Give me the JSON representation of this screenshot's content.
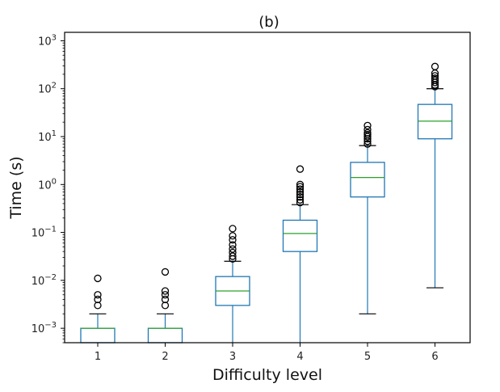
{
  "chart_data": {
    "type": "box",
    "title": "(b)",
    "xlabel": "Difficulty level",
    "ylabel": "Time (s)",
    "yscale": "log",
    "ylim": [
      0.0005,
      1500
    ],
    "y_ticks": [
      {
        "value": 0.001,
        "base": "10",
        "exp": "−3"
      },
      {
        "value": 0.01,
        "base": "10",
        "exp": "−2"
      },
      {
        "value": 0.1,
        "base": "10",
        "exp": "−1"
      },
      {
        "value": 1,
        "base": "10",
        "exp": "0"
      },
      {
        "value": 10,
        "base": "10",
        "exp": "1"
      },
      {
        "value": 100,
        "base": "10",
        "exp": "2"
      },
      {
        "value": 1000,
        "base": "10",
        "exp": "3"
      }
    ],
    "categories": [
      "1",
      "2",
      "3",
      "4",
      "5",
      "6"
    ],
    "boxes": [
      {
        "category": "1",
        "whisker_low": 0.0005,
        "q1": 0.0005,
        "median": 0.001,
        "q3": 0.001,
        "whisker_high": 0.002,
        "outliers": [
          0.003,
          0.004,
          0.005,
          0.011
        ]
      },
      {
        "category": "2",
        "whisker_low": 0.0005,
        "q1": 0.0005,
        "median": 0.001,
        "q3": 0.001,
        "whisker_high": 0.002,
        "outliers": [
          0.003,
          0.004,
          0.005,
          0.006,
          0.015
        ]
      },
      {
        "category": "3",
        "whisker_low": 0.0005,
        "q1": 0.003,
        "median": 0.006,
        "q3": 0.012,
        "whisker_high": 0.025,
        "outliers": [
          0.028,
          0.032,
          0.038,
          0.045,
          0.055,
          0.07,
          0.085,
          0.12
        ]
      },
      {
        "category": "4",
        "whisker_low": 0.0005,
        "q1": 0.04,
        "median": 0.095,
        "q3": 0.18,
        "whisker_high": 0.38,
        "outliers": [
          0.42,
          0.48,
          0.55,
          0.62,
          0.7,
          0.8,
          0.9,
          1.0,
          2.1
        ]
      },
      {
        "category": "5",
        "whisker_low": 0.002,
        "q1": 0.55,
        "median": 1.4,
        "q3": 2.9,
        "whisker_high": 6.5,
        "outliers": [
          7,
          8,
          9,
          10,
          11,
          12,
          14,
          17
        ]
      },
      {
        "category": "6",
        "whisker_low": 0.007,
        "q1": 9,
        "median": 21,
        "q3": 47,
        "whisker_high": 100,
        "outliers": [
          110,
          120,
          135,
          150,
          165,
          185,
          210,
          290
        ]
      }
    ],
    "colors": {
      "box": "#1f77b4",
      "median": "#2ca02c",
      "whisker": "#000000",
      "axis": "#000000"
    }
  }
}
